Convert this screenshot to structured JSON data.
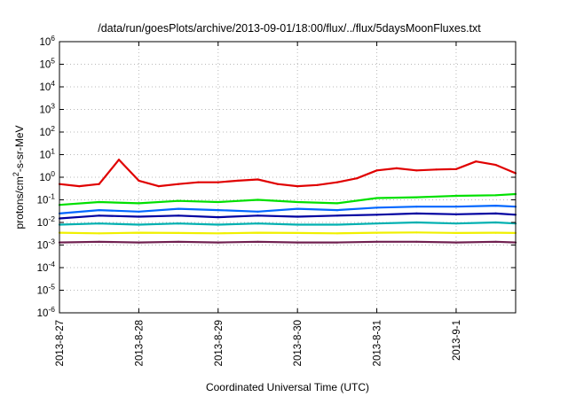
{
  "chart_data": {
    "type": "line",
    "title": "/data/run/goesPlots/archive/2013-09-01/18:00/flux/../flux/5daysMoonFluxes.txt",
    "xlabel": "Coordinated Universal Time (UTC)",
    "ylabel": {
      "prefix": "protons/cm",
      "superscript": "2",
      "suffix": "-s-sr-MeV"
    },
    "yscale": "log",
    "ylim": [
      1e-06,
      1000000.0
    ],
    "y_ticks": [
      {
        "value": 1e-06,
        "base": "10",
        "exp": "-6"
      },
      {
        "value": 1e-05,
        "base": "10",
        "exp": "-5"
      },
      {
        "value": 0.0001,
        "base": "10",
        "exp": "-4"
      },
      {
        "value": 0.001,
        "base": "10",
        "exp": "-3"
      },
      {
        "value": 0.01,
        "base": "10",
        "exp": "-2"
      },
      {
        "value": 0.1,
        "base": "10",
        "exp": "-1"
      },
      {
        "value": 1,
        "base": "10",
        "exp": "0"
      },
      {
        "value": 10,
        "base": "10",
        "exp": "1"
      },
      {
        "value": 100,
        "base": "10",
        "exp": "2"
      },
      {
        "value": 1000,
        "base": "10",
        "exp": "3"
      },
      {
        "value": 10000,
        "base": "10",
        "exp": "4"
      },
      {
        "value": 100000,
        "base": "10",
        "exp": "5"
      },
      {
        "value": 1000000,
        "base": "10",
        "exp": "6"
      }
    ],
    "xlim": [
      "2013-08-27 00:00",
      "2013-09-01 18:00"
    ],
    "x_ticks": [
      "2013-8-27",
      "2013-8-28",
      "2013-8-29",
      "2013-8-30",
      "2013-8-31",
      "2013-9-1"
    ],
    "x_tick_values": [
      "2013-08-27 00:00",
      "2013-08-28 00:00",
      "2013-08-29 00:00",
      "2013-08-30 00:00",
      "2013-08-31 00:00",
      "2013-09-01 00:00"
    ],
    "grid": true,
    "legend": "none",
    "series": [
      {
        "color": "#e00000",
        "x": [
          "2013-08-27 00:00",
          "2013-08-27 06:00",
          "2013-08-27 12:00",
          "2013-08-27 18:00",
          "2013-08-28 00:00",
          "2013-08-28 06:00",
          "2013-08-28 12:00",
          "2013-08-28 18:00",
          "2013-08-29 00:00",
          "2013-08-29 06:00",
          "2013-08-29 12:00",
          "2013-08-29 18:00",
          "2013-08-30 00:00",
          "2013-08-30 06:00",
          "2013-08-30 12:00",
          "2013-08-30 18:00",
          "2013-08-31 00:00",
          "2013-08-31 06:00",
          "2013-08-31 12:00",
          "2013-08-31 18:00",
          "2013-09-01 00:00",
          "2013-09-01 06:00",
          "2013-09-01 12:00",
          "2013-09-01 18:00"
        ],
        "values": [
          0.5,
          0.4,
          0.5,
          6,
          0.7,
          0.4,
          0.5,
          0.6,
          0.6,
          0.7,
          0.8,
          0.5,
          0.4,
          0.45,
          0.6,
          0.9,
          2,
          2.5,
          2,
          2.2,
          2.3,
          5,
          3.5,
          1.5
        ]
      },
      {
        "color": "#00e000",
        "x": [
          "2013-08-27 00:00",
          "2013-08-27 12:00",
          "2013-08-28 00:00",
          "2013-08-28 12:00",
          "2013-08-29 00:00",
          "2013-08-29 12:00",
          "2013-08-30 00:00",
          "2013-08-30 12:00",
          "2013-08-31 00:00",
          "2013-08-31 12:00",
          "2013-09-01 00:00",
          "2013-09-01 12:00",
          "2013-09-01 18:00"
        ],
        "values": [
          0.06,
          0.08,
          0.07,
          0.09,
          0.08,
          0.1,
          0.08,
          0.07,
          0.12,
          0.13,
          0.15,
          0.16,
          0.18
        ]
      },
      {
        "color": "#0066ff",
        "x": [
          "2013-08-27 00:00",
          "2013-08-27 12:00",
          "2013-08-28 00:00",
          "2013-08-28 12:00",
          "2013-08-29 00:00",
          "2013-08-29 12:00",
          "2013-08-30 00:00",
          "2013-08-30 12:00",
          "2013-08-31 00:00",
          "2013-08-31 12:00",
          "2013-09-01 00:00",
          "2013-09-01 12:00",
          "2013-09-01 18:00"
        ],
        "values": [
          0.025,
          0.035,
          0.03,
          0.04,
          0.035,
          0.03,
          0.04,
          0.035,
          0.045,
          0.05,
          0.05,
          0.055,
          0.05
        ]
      },
      {
        "color": "#0000a0",
        "x": [
          "2013-08-27 00:00",
          "2013-08-27 12:00",
          "2013-08-28 00:00",
          "2013-08-28 12:00",
          "2013-08-29 00:00",
          "2013-08-29 12:00",
          "2013-08-30 00:00",
          "2013-08-30 12:00",
          "2013-08-31 00:00",
          "2013-08-31 12:00",
          "2013-09-01 00:00",
          "2013-09-01 12:00",
          "2013-09-01 18:00"
        ],
        "values": [
          0.015,
          0.02,
          0.018,
          0.02,
          0.017,
          0.02,
          0.018,
          0.02,
          0.022,
          0.025,
          0.023,
          0.025,
          0.022
        ]
      },
      {
        "color": "#00b0b0",
        "x": [
          "2013-08-27 00:00",
          "2013-08-27 12:00",
          "2013-08-28 00:00",
          "2013-08-28 12:00",
          "2013-08-29 00:00",
          "2013-08-29 12:00",
          "2013-08-30 00:00",
          "2013-08-30 12:00",
          "2013-08-31 00:00",
          "2013-08-31 12:00",
          "2013-09-01 00:00",
          "2013-09-01 12:00",
          "2013-09-01 18:00"
        ],
        "values": [
          0.008,
          0.009,
          0.008,
          0.009,
          0.008,
          0.009,
          0.008,
          0.008,
          0.009,
          0.01,
          0.009,
          0.01,
          0.009
        ]
      },
      {
        "color": "#f0f000",
        "x": [
          "2013-08-27 00:00",
          "2013-08-27 12:00",
          "2013-08-28 00:00",
          "2013-08-28 12:00",
          "2013-08-29 00:00",
          "2013-08-29 12:00",
          "2013-08-30 00:00",
          "2013-08-30 12:00",
          "2013-08-31 00:00",
          "2013-08-31 12:00",
          "2013-09-01 00:00",
          "2013-09-01 12:00",
          "2013-09-01 18:00"
        ],
        "values": [
          0.0035,
          0.0033,
          0.0035,
          0.0034,
          0.0033,
          0.0035,
          0.0034,
          0.0033,
          0.0035,
          0.0036,
          0.0034,
          0.0035,
          0.0034
        ]
      },
      {
        "color": "#702050",
        "x": [
          "2013-08-27 00:00",
          "2013-08-27 12:00",
          "2013-08-28 00:00",
          "2013-08-28 12:00",
          "2013-08-29 00:00",
          "2013-08-29 12:00",
          "2013-08-30 00:00",
          "2013-08-30 12:00",
          "2013-08-31 00:00",
          "2013-08-31 12:00",
          "2013-09-01 00:00",
          "2013-09-01 12:00",
          "2013-09-01 18:00"
        ],
        "values": [
          0.0013,
          0.0014,
          0.0013,
          0.0014,
          0.0013,
          0.0014,
          0.0013,
          0.0013,
          0.0014,
          0.0014,
          0.0013,
          0.0014,
          0.0013
        ]
      }
    ]
  }
}
